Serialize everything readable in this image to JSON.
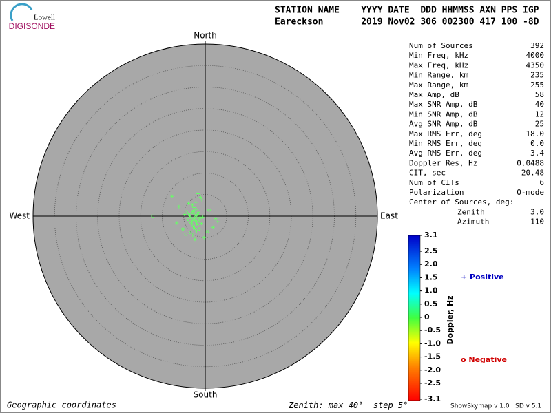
{
  "logo": {
    "top": "Lowell",
    "bottom": "DIGISONDE"
  },
  "header": {
    "row1": "STATION NAME    YYYY DATE  DDD HHMMSS AXN PPS IGP",
    "row2": "Eareckson       2019 Nov02 306 002300 417 100 -8D"
  },
  "chart_data": {
    "type": "scatter",
    "compass": {
      "north": "North",
      "south": "South",
      "east": "East",
      "west": "West"
    },
    "xlim": [
      -40,
      40
    ],
    "ylim": [
      -40,
      40
    ],
    "color": "#66ff66",
    "x": [
      -2.6,
      -2.2,
      -3.0,
      -1.8,
      -2.9,
      -3.4,
      -2.0,
      -1.5,
      -2.4,
      -3.1,
      -2.7,
      -1.9,
      -2.3,
      -3.6,
      -1.2,
      -2.8,
      -2.1,
      -3.3,
      -1.6,
      -2.5,
      -4.0,
      -0.9,
      -2.6,
      -3.8,
      -1.4,
      -2.0,
      -4.4,
      -0.6,
      -3.0,
      -2.2,
      -12.2,
      2.9,
      -7.7,
      -4.5,
      -0.3,
      -6.1,
      1.8,
      -5.2,
      -0.8,
      2.4,
      -3.5,
      -1.1,
      -4.8,
      0.5,
      -2.9,
      -6.6,
      -1.7,
      0.9,
      -3.9,
      -2.4
    ],
    "y": [
      -0.6,
      -0.2,
      -1.0,
      0.4,
      0.8,
      -0.3,
      -1.4,
      -0.9,
      0.2,
      -1.8,
      1.2,
      -2.0,
      -1.1,
      0.1,
      -0.4,
      -2.4,
      1.6,
      -1.5,
      0.9,
      -2.8,
      -0.8,
      -1.7,
      2.0,
      0.6,
      -3.0,
      -3.4,
      1.0,
      -0.2,
      2.6,
      3.2,
      0.0,
      -1.3,
      4.6,
      -4.2,
      -5.0,
      2.2,
      -2.6,
      -3.0,
      3.8,
      -0.6,
      -3.8,
      4.4,
      0.4,
      -3.6,
      -4.4,
      -1.6,
      5.2,
      1.4,
      3.0,
      -5.4
    ],
    "markers": [
      "+",
      "o",
      "+",
      "+",
      "o",
      "+",
      "+",
      "o",
      "+",
      "+",
      "o",
      "+",
      "+",
      "+",
      "o",
      "+",
      "+",
      "o",
      "+",
      "+",
      "o",
      "+",
      "+",
      "+",
      "o",
      "+",
      "o",
      "+",
      "+",
      "+",
      "o",
      "+",
      "+",
      "o",
      "+",
      "+",
      "+",
      "o",
      "+",
      "+",
      "o",
      "+",
      "+",
      "o",
      "+",
      "+",
      "+",
      "o",
      "+",
      "+"
    ]
  },
  "stats": [
    {
      "label": "Num of Sources",
      "value": 392
    },
    {
      "label": "Min Freq, kHz",
      "value": 4000
    },
    {
      "label": "Max Freq, kHz",
      "value": 4350
    },
    {
      "label": "Min Range, km",
      "value": 235
    },
    {
      "label": "Max Range, km",
      "value": 255
    },
    {
      "label": "Max Amp, dB",
      "value": 58
    },
    {
      "label": "Max SNR Amp, dB",
      "value": 40
    },
    {
      "label": "Min SNR Amp, dB",
      "value": 12
    },
    {
      "label": "Avg SNR Amp, dB",
      "value": 25
    },
    {
      "label": "Max RMS Err, deg",
      "value": "18.0"
    },
    {
      "label": "Min RMS Err, deg",
      "value": "0.0"
    },
    {
      "label": "Avg RMS Err, deg",
      "value": "3.4"
    },
    {
      "label": "Doppler Res, Hz",
      "value": 0.0488
    },
    {
      "label": "CIT, sec",
      "value": 20.48
    },
    {
      "label": "Num of CITs",
      "value": 6
    },
    {
      "label": "Polarization",
      "value": "O-mode"
    },
    {
      "label": "Center of Sources, deg:"
    },
    {
      "label": "Zenith",
      "value": "3.0",
      "indent": true
    },
    {
      "label": "Azimuth",
      "value": 110,
      "indent": true
    }
  ],
  "colorbar": {
    "label": "Doppler, Hz",
    "positive": "+ Positive",
    "negative": "o Negative",
    "ticks": [
      3.1,
      2.5,
      {
        "value": 2.0,
        "label": "2.0"
      },
      1.5,
      {
        "value": 1.0,
        "label": "1.0"
      },
      0.5,
      0,
      -0.5,
      {
        "value": -1.0,
        "label": "-1.0"
      },
      -1.5,
      {
        "value": -2.0,
        "label": "-2.0"
      },
      -2.5,
      -3.1
    ]
  },
  "footer": {
    "left": "Geographic coordinates",
    "zenith_prefix": "Zenith: max ",
    "zenith_max": 40,
    "zenith_mid": "°  step ",
    "zenith_step": 5,
    "zenith_suffix": "°",
    "right": "ShowSkymap v 1.0   SD v 5.1"
  }
}
